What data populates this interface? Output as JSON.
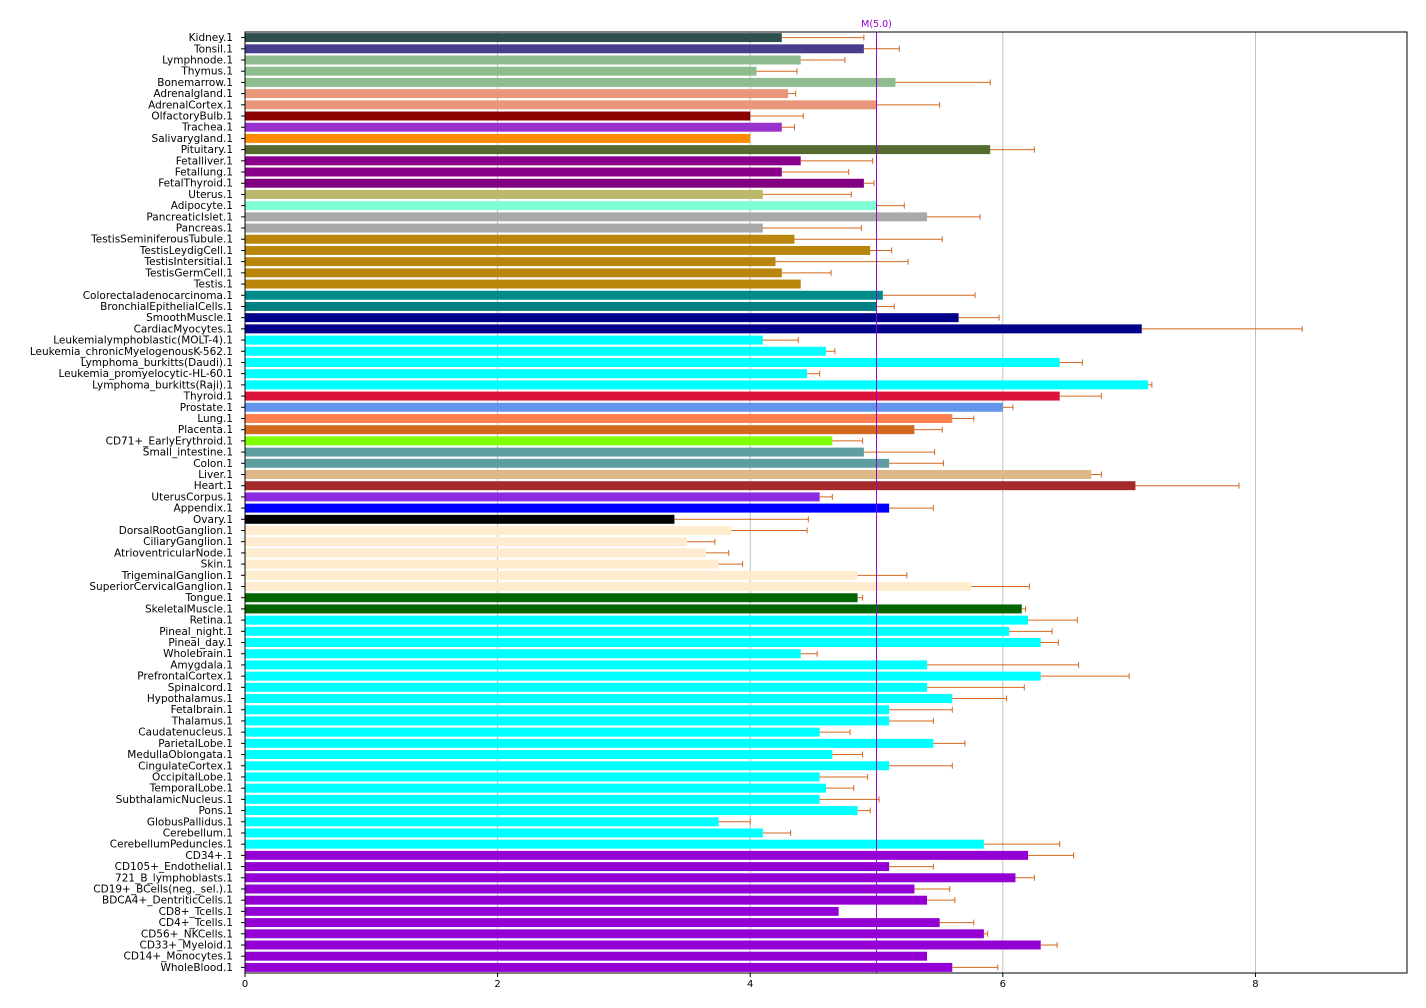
{
  "chart_data": {
    "type": "bar",
    "orientation": "horizontal",
    "title": "",
    "xlabel": "",
    "ylabel": "",
    "xlim": [
      0,
      9.2
    ],
    "x_ticks": [
      0,
      2,
      4,
      6,
      8
    ],
    "grid": "vertical",
    "legend": "none",
    "error_bar_color": "#d2691e",
    "reference_line": {
      "label": "M(5.0)",
      "value": 5.0,
      "color": "#9400d3"
    },
    "categories": [
      "Kidney.1",
      "Tonsil.1",
      "Lymphnode.1",
      "Thymus.1",
      "Bonemarrow.1",
      "Adrenalgland.1",
      "AdrenalCortex.1",
      "OlfactoryBulb.1",
      "Trachea.1",
      "Salivarygland.1",
      "Pituitary.1",
      "Fetalliver.1",
      "Fetallung.1",
      "FetalThyroid.1",
      "Uterus.1",
      "Adipocyte.1",
      "PancreaticIslet.1",
      "Pancreas.1",
      "TestisSeminiferousTubule.1",
      "TestisLeydigCell.1",
      "TestisIntersitial.1",
      "TestisGermCell.1",
      "Testis.1",
      "Colorectaladenocarcinoma.1",
      "BronchialEpithelialCells.1",
      "SmoothMuscle.1",
      "CardiacMyocytes.1",
      "Leukemialymphoblastic(MOLT-4).1",
      "Leukemia_chronicMyelogenousK-562.1",
      "Lymphoma_burkitts(Daudi).1",
      "Leukemia_promyelocytic-HL-60.1",
      "Lymphoma_burkitts(Raji).1",
      "Thyroid.1",
      "Prostate.1",
      "Lung.1",
      "Placenta.1",
      "CD71+_EarlyErythroid.1",
      "Small_intestine.1",
      "Colon.1",
      "Liver.1",
      "Heart.1",
      "UterusCorpus.1",
      "Appendix.1",
      "Ovary.1",
      "DorsalRootGanglion.1",
      "CiliaryGanglion.1",
      "AtrioventricularNode.1",
      "Skin.1",
      "TrigeminalGanglion.1",
      "SuperiorCervicalGanglion.1",
      "Tongue.1",
      "SkeletalMuscle.1",
      "Retina.1",
      "Pineal_night.1",
      "Pineal_day.1",
      "Wholebrain.1",
      "Amygdala.1",
      "PrefrontalCortex.1",
      "Spinalcord.1",
      "Hypothalamus.1",
      "Fetalbrain.1",
      "Thalamus.1",
      "Caudatenucleus.1",
      "ParietalLobe.1",
      "MedullaOblongata.1",
      "CingulateCortex.1",
      "OccipitalLobe.1",
      "TemporalLobe.1",
      "SubthalamicNucleus.1",
      "Pons.1",
      "GlobusPallidus.1",
      "Cerebellum.1",
      "CerebellumPeduncles.1",
      "CD34+.1",
      "CD105+_Endothelial.1",
      "721_B_lymphoblasts.1",
      "CD19+_BCells(neg._sel.).1",
      "BDCA4+_DentriticCells.1",
      "CD8+_Tcells.1",
      "CD4+_Tcells.1",
      "CD56+_NKCells.1",
      "CD33+_Myeloid.1",
      "CD14+_Monocytes.1",
      "WholeBlood.1"
    ],
    "values": [
      4.25,
      4.9,
      4.4,
      4.05,
      5.15,
      4.3,
      5.0,
      4.0,
      4.25,
      4.0,
      5.9,
      4.4,
      4.25,
      4.9,
      4.1,
      5.0,
      5.4,
      4.1,
      4.35,
      4.95,
      4.2,
      4.25,
      4.4,
      5.05,
      5.0,
      5.65,
      7.1,
      4.1,
      4.6,
      6.45,
      4.45,
      7.15,
      6.45,
      6.0,
      5.6,
      5.3,
      4.65,
      4.9,
      5.1,
      6.7,
      7.05,
      4.55,
      5.1,
      3.4,
      3.85,
      3.5,
      3.65,
      3.75,
      4.85,
      5.75,
      4.85,
      6.15,
      6.2,
      6.05,
      6.3,
      4.4,
      5.4,
      6.3,
      5.4,
      5.6,
      5.1,
      5.1,
      4.55,
      5.45,
      4.65,
      5.1,
      4.55,
      4.6,
      4.55,
      4.85,
      3.75,
      4.1,
      5.85,
      6.2,
      5.1,
      6.1,
      5.3,
      5.4,
      4.7,
      5.5,
      5.85,
      6.3,
      5.4,
      5.6
    ],
    "errors": [
      0.65,
      0.28,
      0.35,
      0.32,
      0.75,
      0.06,
      0.5,
      0.42,
      0.1,
      0.0,
      0.35,
      0.57,
      0.53,
      0.08,
      0.7,
      0.22,
      0.42,
      0.78,
      1.17,
      0.17,
      1.05,
      0.39,
      0.0,
      0.73,
      0.14,
      0.32,
      1.27,
      0.28,
      0.07,
      0.18,
      0.1,
      0.03,
      0.33,
      0.08,
      0.17,
      0.22,
      0.24,
      0.56,
      0.43,
      0.08,
      0.82,
      0.1,
      0.35,
      1.06,
      0.6,
      0.22,
      0.18,
      0.19,
      0.39,
      0.46,
      0.04,
      0.03,
      0.39,
      0.34,
      0.14,
      0.13,
      1.2,
      0.7,
      0.77,
      0.43,
      0.5,
      0.35,
      0.24,
      0.25,
      0.24,
      0.5,
      0.38,
      0.22,
      0.47,
      0.1,
      0.25,
      0.22,
      0.6,
      0.36,
      0.35,
      0.15,
      0.28,
      0.22,
      0.0,
      0.27,
      0.03,
      0.13,
      0.0,
      0.36
    ],
    "colors": [
      "#2f4f4f",
      "#483d8b",
      "#8fbc8f",
      "#8fbc8f",
      "#8fbc8f",
      "#e9967a",
      "#e9967a",
      "#8b0000",
      "#9932cc",
      "#ff8c00",
      "#556b2f",
      "#8b008b",
      "#8b008b",
      "#800080",
      "#bdb76b",
      "#7fffd4",
      "#a9a9a9",
      "#a9a9a9",
      "#b8860b",
      "#b8860b",
      "#b8860b",
      "#b8860b",
      "#b8860b",
      "#008b8b",
      "#008080",
      "#00008b",
      "#00008b",
      "#00ffff",
      "#00ffff",
      "#00ffff",
      "#00ffff",
      "#00ffff",
      "#dc143c",
      "#6495ed",
      "#ff7f50",
      "#d2691e",
      "#7fff00",
      "#5f9ea0",
      "#5f9ea0",
      "#deb887",
      "#a52a2a",
      "#8a2be2",
      "#0000ff",
      "#000000",
      "#ffebcd",
      "#ffebcd",
      "#ffebcd",
      "#ffebcd",
      "#ffebcd",
      "#ffebcd",
      "#006400",
      "#006400",
      "#00ffff",
      "#00ffff",
      "#00ffff",
      "#00ffff",
      "#00ffff",
      "#00ffff",
      "#00ffff",
      "#00ffff",
      "#00ffff",
      "#00ffff",
      "#00ffff",
      "#00ffff",
      "#00ffff",
      "#00ffff",
      "#00ffff",
      "#00ffff",
      "#00ffff",
      "#00ffff",
      "#00ffff",
      "#00ffff",
      "#00ffff",
      "#9400d3",
      "#9400d3",
      "#9400d3",
      "#9400d3",
      "#9400d3",
      "#9400d3",
      "#9400d3",
      "#9400d3",
      "#9400d3",
      "#9400d3",
      "#9400d3"
    ]
  }
}
